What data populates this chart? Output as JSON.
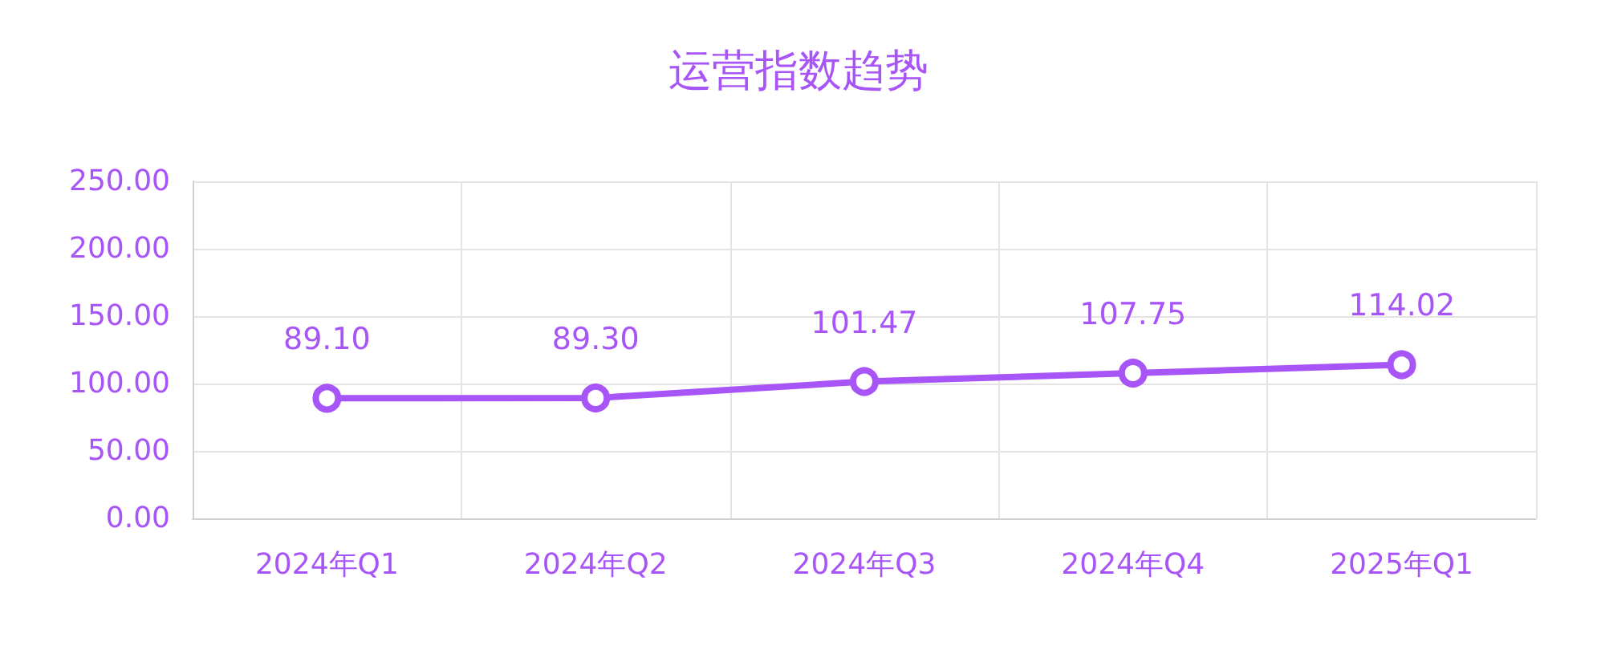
{
  "chart_data": {
    "type": "line",
    "title": "运营指数趋势",
    "categories": [
      "2024年Q1",
      "2024年Q2",
      "2024年Q3",
      "2024年Q4",
      "2025年Q1"
    ],
    "values": [
      89.1,
      89.3,
      101.47,
      107.75,
      114.02
    ],
    "value_labels": [
      "89.10",
      "89.30",
      "101.47",
      "107.75",
      "114.02"
    ],
    "color": "#a855f7",
    "ylim": [
      0,
      250
    ],
    "yticks": [
      {
        "value": 0,
        "label": "0.00"
      },
      {
        "value": 50,
        "label": "50.00"
      },
      {
        "value": 100,
        "label": "100.00"
      },
      {
        "value": 150,
        "label": "150.00"
      },
      {
        "value": 200,
        "label": "200.00"
      },
      {
        "value": 250,
        "label": "250.00"
      }
    ],
    "grid": true,
    "marker": "circle",
    "line_style": "solid"
  }
}
